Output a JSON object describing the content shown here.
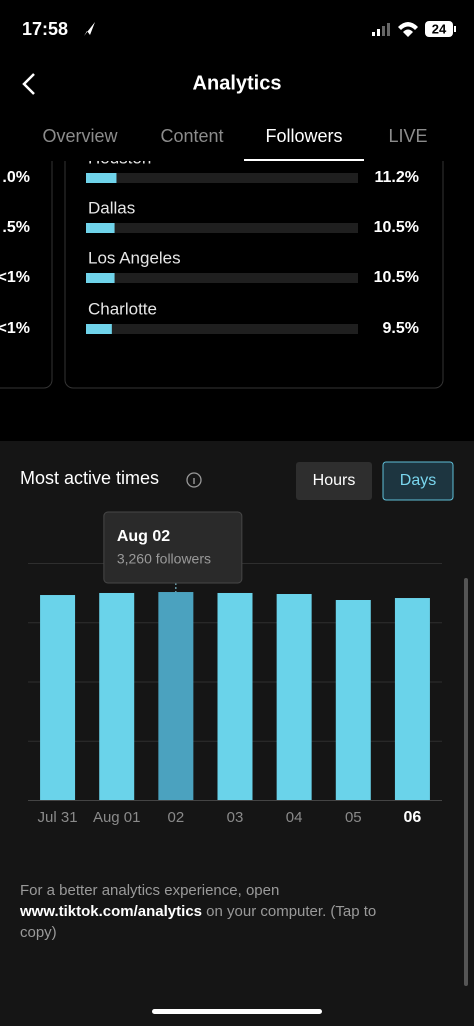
{
  "status_bar": {
    "time": "17:58",
    "battery": "24"
  },
  "header": {
    "title": "Analytics"
  },
  "tabs": [
    "Overview",
    "Content",
    "Followers",
    "LIVE"
  ],
  "active_tab": 2,
  "left_column": [
    ".0%",
    ".5%",
    "<1%",
    "<1%"
  ],
  "cities": {
    "xlim": [
      0,
      100
    ],
    "color": "#6fd3ea",
    "items": [
      {
        "name": "Houston",
        "value": 11.2,
        "value_label": "11.2%"
      },
      {
        "name": "Dallas",
        "value": 10.5,
        "value_label": "10.5%"
      },
      {
        "name": "Los Angeles",
        "value": 10.5,
        "value_label": "10.5%"
      },
      {
        "name": "Charlotte",
        "value": 9.5,
        "value_label": "9.5%"
      }
    ]
  },
  "active_times": {
    "title": "Most active times",
    "toggle": [
      "Hours",
      "Days"
    ],
    "toggle_active": 1,
    "categories": [
      "Jul 31",
      "Aug 01",
      "02",
      "03",
      "04",
      "05",
      "06"
    ],
    "values": [
      3213,
      3245,
      3260,
      3245,
      3229,
      3135,
      3166
    ],
    "ylim": [
      0,
      3715
    ],
    "color": "#6ad3ea",
    "selected_color": "#4ba2bf",
    "selected": 2,
    "tooltip": {
      "title": "Aug 02",
      "text": "3,260 followers"
    }
  },
  "footer": {
    "line1": "For a better analytics experience, open",
    "link": "www.tiktok.com/analytics",
    "line2": " on your computer. (Tap to",
    "line3": "copy)"
  }
}
